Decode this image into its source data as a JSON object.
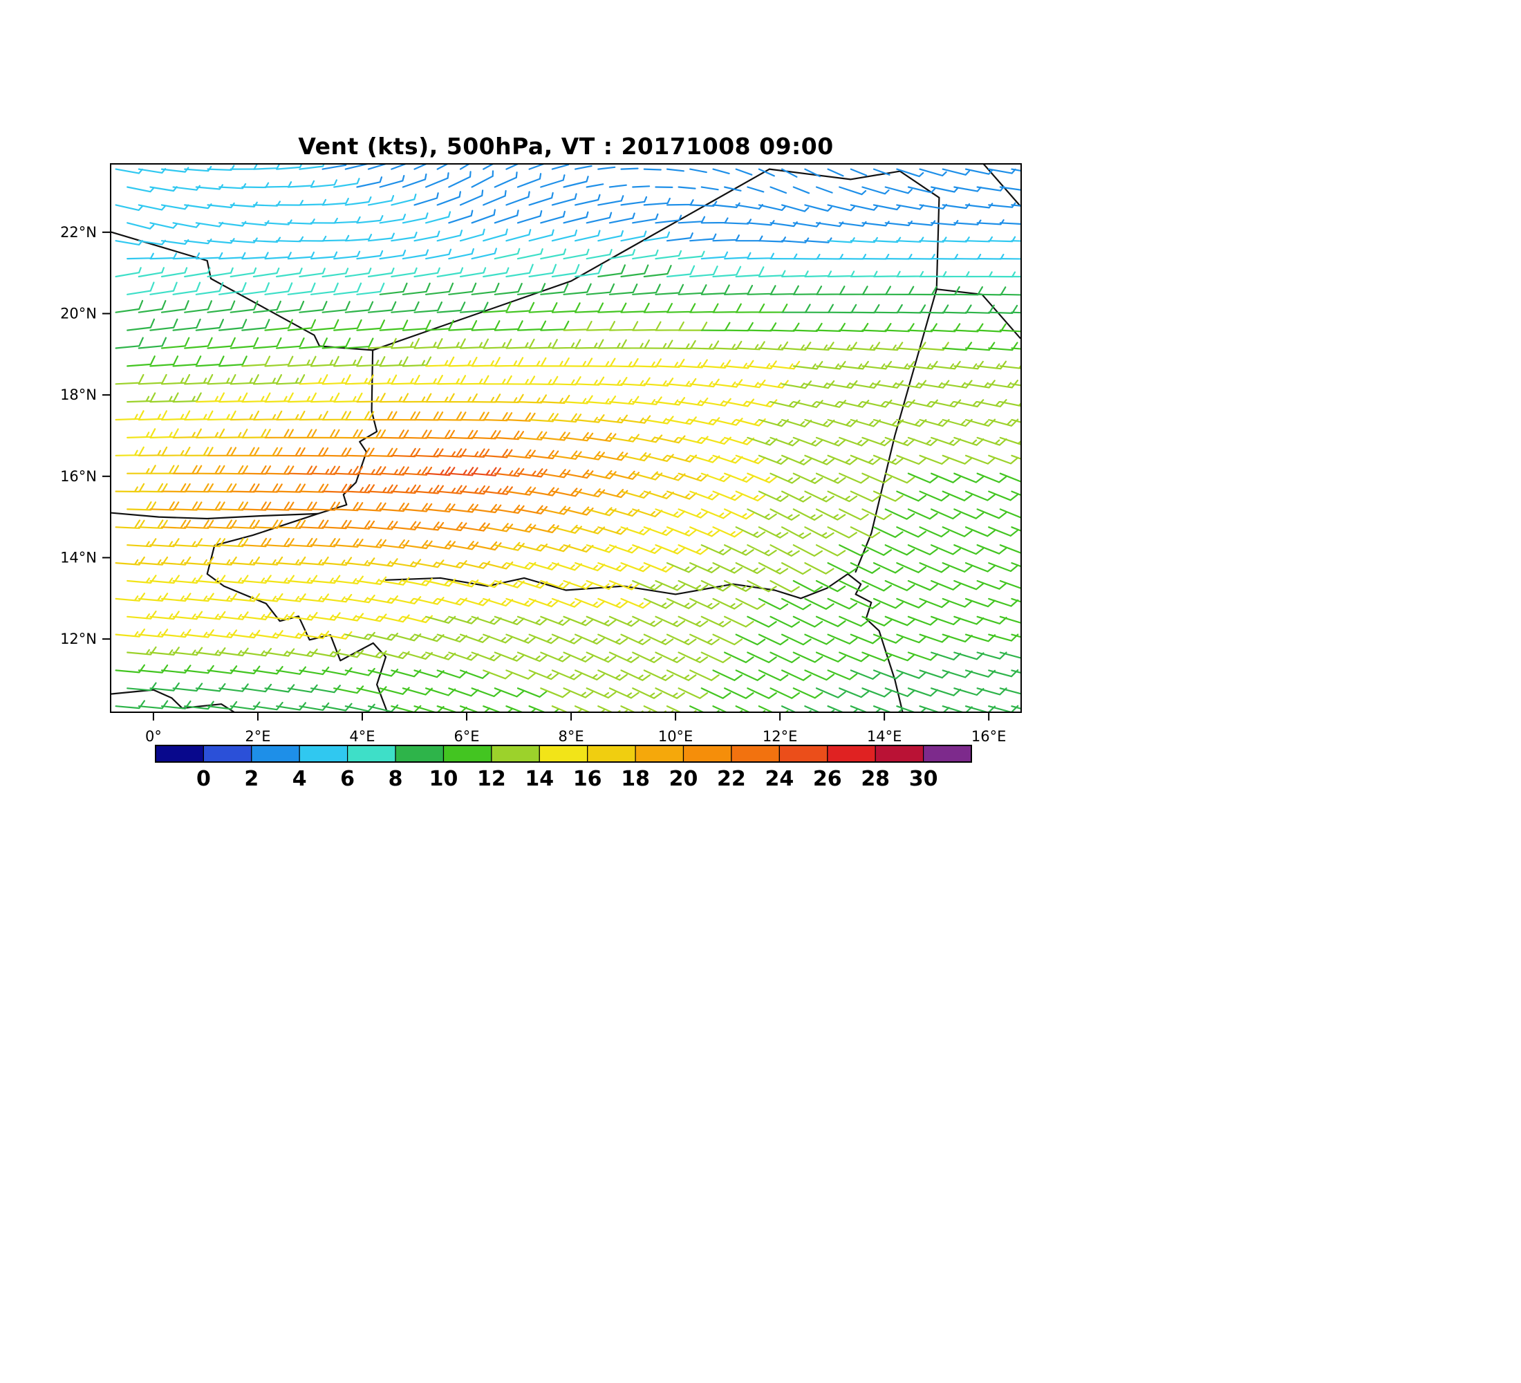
{
  "chart_data": {
    "type": "scatter",
    "subtype": "wind-barb-field-map",
    "title": "Vent (kts), 500hPa, VT : 20171008  09:00",
    "variable": "Vent (kts)",
    "level": "500hPa",
    "valid_time": "20171008 09:00",
    "lon_range": [
      -0.82,
      16.62
    ],
    "lat_range": [
      10.2,
      23.68
    ],
    "x_axis": {
      "tick_labels": [
        "0°",
        "2°E",
        "4°E",
        "6°E",
        "8°E",
        "10°E",
        "12°E",
        "14°E",
        "16°E"
      ],
      "tick_lons": [
        0,
        2,
        4,
        6,
        8,
        10,
        12,
        14,
        16
      ]
    },
    "y_axis": {
      "tick_labels": [
        "12°N",
        "14°N",
        "16°N",
        "18°N",
        "20°N",
        "22°N"
      ],
      "tick_lats": [
        12,
        14,
        16,
        18,
        20,
        22
      ]
    },
    "colorbar": {
      "tick_labels": [
        "0",
        "2",
        "4",
        "6",
        "8",
        "10",
        "12",
        "14",
        "16",
        "18",
        "20",
        "22",
        "24",
        "26",
        "28",
        "30"
      ],
      "tick_values": [
        0,
        2,
        4,
        6,
        8,
        10,
        12,
        14,
        16,
        18,
        20,
        22,
        24,
        26,
        28,
        30
      ],
      "colors": [
        "#08088C",
        "#2B50D8",
        "#1E8FE8",
        "#30C8F0",
        "#3EDFC8",
        "#2EB44A",
        "#43C521",
        "#9CD22B",
        "#F2E418",
        "#F0CE10",
        "#F5A80B",
        "#F58E0A",
        "#F2720F",
        "#EB4E1A",
        "#E02222",
        "#BA1235",
        "#7D2A8C"
      ]
    },
    "wind_field": {
      "units": "kts",
      "control_lons": [
        -0.5,
        3,
        6,
        9,
        12,
        16
      ],
      "control_lats": [
        10.5,
        12,
        13.5,
        15,
        16,
        17,
        18,
        19,
        20,
        21,
        22,
        23.5
      ],
      "speed": [
        [
          8,
          9,
          11,
          13,
          10,
          8
        ],
        [
          14,
          14,
          13,
          14,
          11,
          10
        ],
        [
          16,
          16,
          15,
          14,
          12,
          10
        ],
        [
          18,
          21,
          21,
          16,
          13,
          11
        ],
        [
          17,
          23,
          25,
          18,
          13,
          11
        ],
        [
          15,
          19,
          21,
          17,
          13,
          13
        ],
        [
          13,
          15,
          16,
          15,
          14,
          14
        ],
        [
          10,
          12,
          14,
          14,
          14,
          12
        ],
        [
          9,
          9,
          10,
          11,
          10,
          9
        ],
        [
          6,
          6,
          7,
          8,
          7,
          7
        ],
        [
          5,
          5,
          4,
          3,
          3,
          4
        ],
        [
          4,
          4,
          3,
          2,
          2,
          3
        ]
      ],
      "direction_from": [
        [
          95,
          100,
          110,
          115,
          115,
          105
        ],
        [
          95,
          100,
          110,
          115,
          115,
          105
        ],
        [
          95,
          95,
          105,
          112,
          118,
          110
        ],
        [
          92,
          92,
          98,
          108,
          118,
          112
        ],
        [
          90,
          92,
          95,
          105,
          115,
          112
        ],
        [
          88,
          90,
          92,
          100,
          110,
          108
        ],
        [
          88,
          88,
          90,
          95,
          102,
          100
        ],
        [
          85,
          86,
          88,
          90,
          95,
          95
        ],
        [
          82,
          84,
          86,
          88,
          90,
          92
        ],
        [
          80,
          82,
          80,
          82,
          88,
          90
        ],
        [
          105,
          92,
          72,
          78,
          96,
          92
        ],
        [
          100,
          82,
          58,
          88,
          118,
          100
        ]
      ]
    },
    "map_borders": [
      {
        "name": "mali-algeria-north",
        "points": [
          [
            -0.8,
            22.0
          ],
          [
            0.25,
            21.6
          ],
          [
            1.03,
            21.3
          ],
          [
            1.1,
            20.86
          ],
          [
            3.08,
            19.47
          ],
          [
            3.18,
            19.2
          ],
          [
            4.2,
            19.1
          ]
        ]
      },
      {
        "name": "niger-algeria-diagonal",
        "points": [
          [
            4.2,
            19.1
          ],
          [
            8.0,
            20.8
          ],
          [
            11.8,
            23.55
          ]
        ]
      },
      {
        "name": "libya-niger-north",
        "points": [
          [
            11.8,
            23.55
          ],
          [
            13.35,
            23.3
          ],
          [
            14.3,
            23.5
          ],
          [
            15.05,
            22.85
          ],
          [
            15.0,
            20.6
          ],
          [
            15.87,
            20.47
          ],
          [
            16.6,
            19.4
          ]
        ]
      },
      {
        "name": "northeast-corner",
        "points": [
          [
            15.87,
            23.72
          ],
          [
            16.6,
            22.65
          ]
        ]
      },
      {
        "name": "niger-chad",
        "points": [
          [
            15.0,
            20.6
          ],
          [
            14.2,
            17.0
          ],
          [
            13.75,
            14.6
          ],
          [
            13.45,
            13.65
          ]
        ]
      },
      {
        "name": "niger-mali-west",
        "points": [
          [
            4.2,
            19.1
          ],
          [
            4.18,
            17.6
          ],
          [
            4.28,
            17.1
          ],
          [
            3.95,
            16.85
          ],
          [
            4.08,
            16.6
          ],
          [
            3.88,
            15.85
          ],
          [
            3.64,
            15.55
          ],
          [
            3.7,
            15.3
          ],
          [
            3.15,
            15.08
          ],
          [
            2.1,
            15.03
          ],
          [
            1.03,
            14.96
          ],
          [
            0.1,
            15.0
          ],
          [
            -0.8,
            15.1
          ]
        ]
      },
      {
        "name": "burkina-benin",
        "points": [
          [
            3.15,
            15.08
          ],
          [
            1.9,
            14.55
          ],
          [
            1.17,
            14.3
          ],
          [
            1.03,
            13.6
          ],
          [
            1.35,
            13.3
          ],
          [
            2.16,
            12.87
          ],
          [
            2.42,
            12.44
          ],
          [
            2.78,
            12.56
          ],
          [
            2.99,
            11.98
          ],
          [
            3.39,
            12.1
          ],
          [
            3.58,
            11.47
          ],
          [
            4.21,
            11.9
          ],
          [
            4.45,
            11.56
          ],
          [
            4.28,
            10.88
          ],
          [
            4.48,
            10.2
          ]
        ]
      },
      {
        "name": "niger-nigeria-south",
        "points": [
          [
            4.45,
            13.45
          ],
          [
            5.5,
            13.5
          ],
          [
            6.4,
            13.3
          ],
          [
            7.1,
            13.5
          ],
          [
            7.9,
            13.2
          ],
          [
            9.0,
            13.3
          ],
          [
            10.0,
            13.1
          ],
          [
            11.1,
            13.35
          ],
          [
            11.9,
            13.2
          ],
          [
            12.4,
            13.0
          ],
          [
            12.9,
            13.25
          ],
          [
            13.3,
            13.6
          ],
          [
            13.55,
            13.35
          ],
          [
            13.45,
            13.1
          ],
          [
            13.75,
            12.9
          ],
          [
            13.65,
            12.5
          ],
          [
            13.9,
            12.2
          ],
          [
            14.05,
            11.6
          ],
          [
            14.2,
            11.0
          ],
          [
            14.35,
            10.2
          ]
        ]
      },
      {
        "name": "southwest-coastline",
        "points": [
          [
            -0.8,
            10.65
          ],
          [
            0.0,
            10.75
          ],
          [
            0.35,
            10.55
          ],
          [
            0.55,
            10.3
          ],
          [
            1.3,
            10.4
          ],
          [
            1.55,
            10.2
          ]
        ]
      }
    ]
  }
}
